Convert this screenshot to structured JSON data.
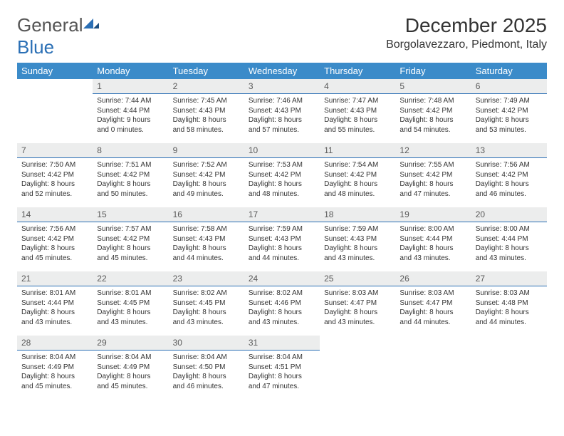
{
  "brand": {
    "part1": "General",
    "part2": "Blue"
  },
  "title": "December 2025",
  "location": "Borgolavezzaro, Piedmont, Italy",
  "colors": {
    "header_bg": "#3b8bc9",
    "header_text": "#ffffff",
    "daybar_bg": "#eceded",
    "daybar_border": "#2a6fb5",
    "body_text": "#333333",
    "logo_blue": "#2a6fb5"
  },
  "weekdays": [
    "Sunday",
    "Monday",
    "Tuesday",
    "Wednesday",
    "Thursday",
    "Friday",
    "Saturday"
  ],
  "weeks": [
    [
      null,
      {
        "n": "1",
        "sr": "7:44 AM",
        "ss": "4:44 PM",
        "dl": "9 hours and 0 minutes."
      },
      {
        "n": "2",
        "sr": "7:45 AM",
        "ss": "4:43 PM",
        "dl": "8 hours and 58 minutes."
      },
      {
        "n": "3",
        "sr": "7:46 AM",
        "ss": "4:43 PM",
        "dl": "8 hours and 57 minutes."
      },
      {
        "n": "4",
        "sr": "7:47 AM",
        "ss": "4:43 PM",
        "dl": "8 hours and 55 minutes."
      },
      {
        "n": "5",
        "sr": "7:48 AM",
        "ss": "4:42 PM",
        "dl": "8 hours and 54 minutes."
      },
      {
        "n": "6",
        "sr": "7:49 AM",
        "ss": "4:42 PM",
        "dl": "8 hours and 53 minutes."
      }
    ],
    [
      {
        "n": "7",
        "sr": "7:50 AM",
        "ss": "4:42 PM",
        "dl": "8 hours and 52 minutes."
      },
      {
        "n": "8",
        "sr": "7:51 AM",
        "ss": "4:42 PM",
        "dl": "8 hours and 50 minutes."
      },
      {
        "n": "9",
        "sr": "7:52 AM",
        "ss": "4:42 PM",
        "dl": "8 hours and 49 minutes."
      },
      {
        "n": "10",
        "sr": "7:53 AM",
        "ss": "4:42 PM",
        "dl": "8 hours and 48 minutes."
      },
      {
        "n": "11",
        "sr": "7:54 AM",
        "ss": "4:42 PM",
        "dl": "8 hours and 48 minutes."
      },
      {
        "n": "12",
        "sr": "7:55 AM",
        "ss": "4:42 PM",
        "dl": "8 hours and 47 minutes."
      },
      {
        "n": "13",
        "sr": "7:56 AM",
        "ss": "4:42 PM",
        "dl": "8 hours and 46 minutes."
      }
    ],
    [
      {
        "n": "14",
        "sr": "7:56 AM",
        "ss": "4:42 PM",
        "dl": "8 hours and 45 minutes."
      },
      {
        "n": "15",
        "sr": "7:57 AM",
        "ss": "4:42 PM",
        "dl": "8 hours and 45 minutes."
      },
      {
        "n": "16",
        "sr": "7:58 AM",
        "ss": "4:43 PM",
        "dl": "8 hours and 44 minutes."
      },
      {
        "n": "17",
        "sr": "7:59 AM",
        "ss": "4:43 PM",
        "dl": "8 hours and 44 minutes."
      },
      {
        "n": "18",
        "sr": "7:59 AM",
        "ss": "4:43 PM",
        "dl": "8 hours and 43 minutes."
      },
      {
        "n": "19",
        "sr": "8:00 AM",
        "ss": "4:44 PM",
        "dl": "8 hours and 43 minutes."
      },
      {
        "n": "20",
        "sr": "8:00 AM",
        "ss": "4:44 PM",
        "dl": "8 hours and 43 minutes."
      }
    ],
    [
      {
        "n": "21",
        "sr": "8:01 AM",
        "ss": "4:44 PM",
        "dl": "8 hours and 43 minutes."
      },
      {
        "n": "22",
        "sr": "8:01 AM",
        "ss": "4:45 PM",
        "dl": "8 hours and 43 minutes."
      },
      {
        "n": "23",
        "sr": "8:02 AM",
        "ss": "4:45 PM",
        "dl": "8 hours and 43 minutes."
      },
      {
        "n": "24",
        "sr": "8:02 AM",
        "ss": "4:46 PM",
        "dl": "8 hours and 43 minutes."
      },
      {
        "n": "25",
        "sr": "8:03 AM",
        "ss": "4:47 PM",
        "dl": "8 hours and 43 minutes."
      },
      {
        "n": "26",
        "sr": "8:03 AM",
        "ss": "4:47 PM",
        "dl": "8 hours and 44 minutes."
      },
      {
        "n": "27",
        "sr": "8:03 AM",
        "ss": "4:48 PM",
        "dl": "8 hours and 44 minutes."
      }
    ],
    [
      {
        "n": "28",
        "sr": "8:04 AM",
        "ss": "4:49 PM",
        "dl": "8 hours and 45 minutes."
      },
      {
        "n": "29",
        "sr": "8:04 AM",
        "ss": "4:49 PM",
        "dl": "8 hours and 45 minutes."
      },
      {
        "n": "30",
        "sr": "8:04 AM",
        "ss": "4:50 PM",
        "dl": "8 hours and 46 minutes."
      },
      {
        "n": "31",
        "sr": "8:04 AM",
        "ss": "4:51 PM",
        "dl": "8 hours and 47 minutes."
      },
      null,
      null,
      null
    ]
  ],
  "labels": {
    "sunrise": "Sunrise: ",
    "sunset": "Sunset: ",
    "daylight": "Daylight: "
  }
}
